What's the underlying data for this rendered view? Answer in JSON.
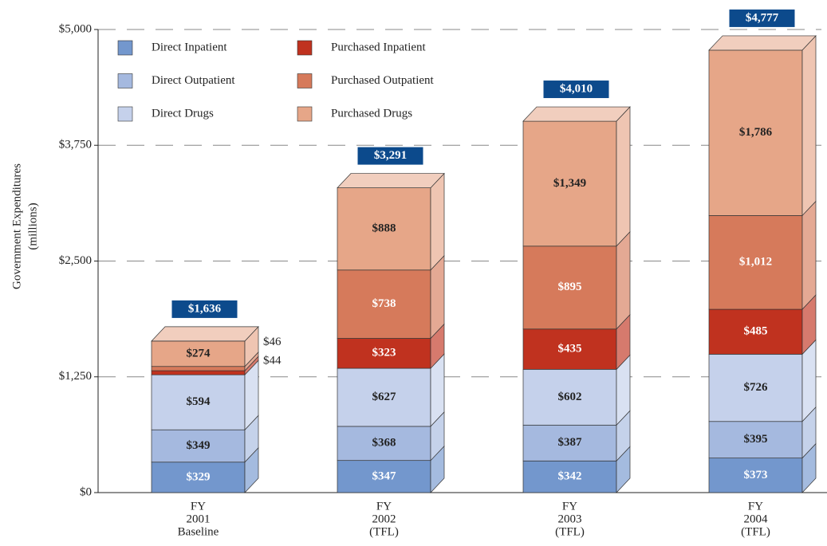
{
  "chart_data": {
    "type": "stacked-bar-3d",
    "ylabel": [
      "Government Expenditures",
      "(millions)"
    ],
    "categories": [
      [
        "FY",
        "2001",
        "Baseline"
      ],
      [
        "FY",
        "2002",
        "(TFL)"
      ],
      [
        "FY",
        "2003",
        "(TFL)"
      ],
      [
        "FY",
        "2004",
        "(TFL)"
      ]
    ],
    "series": [
      {
        "name": "Direct Inpatient",
        "color": "#7397cd",
        "label_color": "#ffffff",
        "values": [
          329,
          347,
          342,
          373
        ],
        "value_labels": [
          "$329",
          "$347",
          "$342",
          "$373"
        ]
      },
      {
        "name": "Direct Outpatient",
        "color": "#a5b9df",
        "label_color": "#222222",
        "values": [
          349,
          368,
          387,
          395
        ],
        "value_labels": [
          "$349",
          "$368",
          "$387",
          "$395"
        ]
      },
      {
        "name": "Direct Drugs",
        "color": "#c5d1eb",
        "label_color": "#222222",
        "values": [
          594,
          627,
          602,
          726
        ],
        "value_labels": [
          "$594",
          "$627",
          "$602",
          "$726"
        ]
      },
      {
        "name": "Purchased Inpatient",
        "color": "#c0321f",
        "label_color": "#ffffff",
        "values": [
          44,
          323,
          435,
          485
        ],
        "value_labels": [
          "$44",
          "$323",
          "$435",
          "$485"
        ]
      },
      {
        "name": "Purchased Outpatient",
        "color": "#d67a5b",
        "label_color": "#ffffff",
        "values": [
          46,
          738,
          895,
          1012
        ],
        "value_labels": [
          "$46",
          "$738",
          "$895",
          "$1,012"
        ]
      },
      {
        "name": "Purchased Drugs",
        "color": "#e6a688",
        "label_color": "#222222",
        "values": [
          274,
          888,
          1349,
          1786
        ],
        "value_labels": [
          "$274",
          "$888",
          "$1,349",
          "$1,786"
        ]
      }
    ],
    "totals": [
      1636,
      3291,
      4010,
      4777
    ],
    "total_labels": [
      "$1,636",
      "$3,291",
      "$4,010",
      "$4,777"
    ],
    "total_color": "#0c4a8c",
    "ylim": [
      0,
      5000
    ],
    "yticks": [
      {
        "value": 0,
        "label": "$0"
      },
      {
        "value": 1250,
        "label": "$1,250"
      },
      {
        "value": 2500,
        "label": "$2,500"
      },
      {
        "value": 3750,
        "label": "$3,750"
      },
      {
        "value": 5000,
        "label": "$5,000"
      }
    ],
    "grid": true
  }
}
